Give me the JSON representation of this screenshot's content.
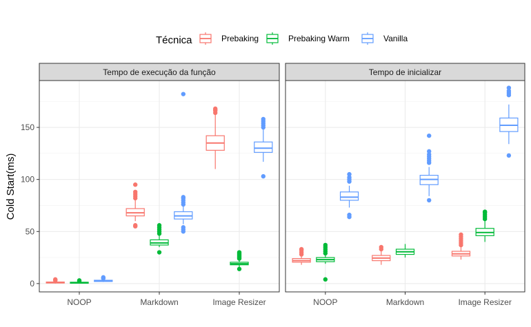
{
  "chart_data": {
    "type": "boxplot",
    "ylabel": "Cold Start(ms)",
    "ylim": [
      -8,
      195
    ],
    "yticks": [
      0,
      50,
      100,
      150
    ],
    "categories": [
      "NOOP",
      "Markdown",
      "Image Resizer"
    ],
    "legend": {
      "title": "Técnica",
      "placement": "top",
      "items": [
        {
          "name": "Prebaking",
          "color": "#F8766D"
        },
        {
          "name": "Prebaking Warm",
          "color": "#00BA38"
        },
        {
          "name": "Vanilla",
          "color": "#619CFF"
        }
      ]
    },
    "panels": [
      {
        "title": "Tempo de execução da função",
        "groups": [
          {
            "category": "NOOP",
            "series": "Prebaking",
            "whisker_low": 0,
            "q1": 0.5,
            "median": 1,
            "q3": 1.5,
            "whisker_high": 2.5,
            "outliers": [
              3,
              3.5,
              4
            ]
          },
          {
            "category": "NOOP",
            "series": "Prebaking Warm",
            "whisker_low": 0,
            "q1": 0.3,
            "median": 0.8,
            "q3": 1.3,
            "whisker_high": 2,
            "outliers": [
              2.5,
              3
            ]
          },
          {
            "category": "NOOP",
            "series": "Vanilla",
            "whisker_low": 1.5,
            "q1": 2,
            "median": 2.5,
            "q3": 3.2,
            "whisker_high": 4.5,
            "outliers": [
              5,
              5.5,
              6
            ]
          },
          {
            "category": "Markdown",
            "series": "Prebaking",
            "whisker_low": 60,
            "q1": 65,
            "median": 68,
            "q3": 72,
            "whisker_high": 80,
            "outliers": [
              55,
              56,
              82,
              84,
              86,
              88,
              95
            ]
          },
          {
            "category": "Markdown",
            "series": "Prebaking Warm",
            "whisker_low": 35,
            "q1": 37,
            "median": 39,
            "q3": 42,
            "whisker_high": 46,
            "outliers": [
              30,
              48,
              50,
              52,
              54,
              56
            ]
          },
          {
            "category": "Markdown",
            "series": "Vanilla",
            "whisker_low": 57,
            "q1": 62,
            "median": 65,
            "q3": 69,
            "whisker_high": 74,
            "outliers": [
              50,
              52,
              54,
              76,
              78,
              80,
              82,
              83,
              182
            ]
          },
          {
            "category": "Image Resizer",
            "series": "Prebaking",
            "whisker_low": 110,
            "q1": 128,
            "median": 135,
            "q3": 142,
            "whisker_high": 162,
            "outliers": [
              164,
              166,
              167,
              168
            ]
          },
          {
            "category": "Image Resizer",
            "series": "Prebaking Warm",
            "whisker_low": 16,
            "q1": 18,
            "median": 19,
            "q3": 20.5,
            "whisker_high": 23,
            "outliers": [
              14,
              24,
              25,
              26,
              27,
              28,
              29,
              30
            ]
          },
          {
            "category": "Image Resizer",
            "series": "Vanilla",
            "whisker_low": 117,
            "q1": 126,
            "median": 130,
            "q3": 136,
            "whisker_high": 148,
            "outliers": [
              103,
              150,
              152,
              154,
              156,
              158
            ]
          }
        ]
      },
      {
        "title": "Tempo de inicializar",
        "groups": [
          {
            "category": "NOOP",
            "series": "Prebaking",
            "whisker_low": 18,
            "q1": 20.5,
            "median": 22,
            "q3": 24,
            "whisker_high": 26,
            "outliers": [
              28,
              30,
              32,
              33
            ]
          },
          {
            "category": "NOOP",
            "series": "Prebaking Warm",
            "whisker_low": 19,
            "q1": 21,
            "median": 23,
            "q3": 25,
            "whisker_high": 27,
            "outliers": [
              4,
              29,
              31,
              33,
              35,
              37
            ]
          },
          {
            "category": "NOOP",
            "series": "Vanilla",
            "whisker_low": 73,
            "q1": 80,
            "median": 83,
            "q3": 88,
            "whisker_high": 94,
            "outliers": [
              64,
              66,
              98,
              100,
              102,
              105
            ]
          },
          {
            "category": "Markdown",
            "series": "Prebaking",
            "whisker_low": 18,
            "q1": 22,
            "median": 24.5,
            "q3": 27,
            "whisker_high": 31,
            "outliers": [
              33,
              35
            ]
          },
          {
            "category": "Markdown",
            "series": "Prebaking Warm",
            "whisker_low": 25,
            "q1": 28,
            "median": 30.5,
            "q3": 33,
            "whisker_high": 38,
            "outliers": []
          },
          {
            "category": "Markdown",
            "series": "Vanilla",
            "whisker_low": 84,
            "q1": 95,
            "median": 100,
            "q3": 104,
            "whisker_high": 112,
            "outliers": [
              80,
              116,
              118,
              120,
              122,
              124,
              127,
              142
            ]
          },
          {
            "category": "Image Resizer",
            "series": "Prebaking",
            "whisker_low": 23,
            "q1": 26.5,
            "median": 28.5,
            "q3": 31,
            "whisker_high": 35,
            "outliers": [
              37,
              39,
              41,
              43,
              45,
              47
            ]
          },
          {
            "category": "Image Resizer",
            "series": "Prebaking Warm",
            "whisker_low": 40,
            "q1": 46,
            "median": 49,
            "q3": 53,
            "whisker_high": 60,
            "outliers": [
              62,
              64,
              66,
              68,
              69
            ]
          },
          {
            "category": "Image Resizer",
            "series": "Vanilla",
            "whisker_low": 134,
            "q1": 146,
            "median": 152,
            "q3": 159,
            "whisker_high": 172,
            "outliers": [
              123,
              181,
              183,
              185,
              188
            ]
          }
        ]
      }
    ]
  }
}
